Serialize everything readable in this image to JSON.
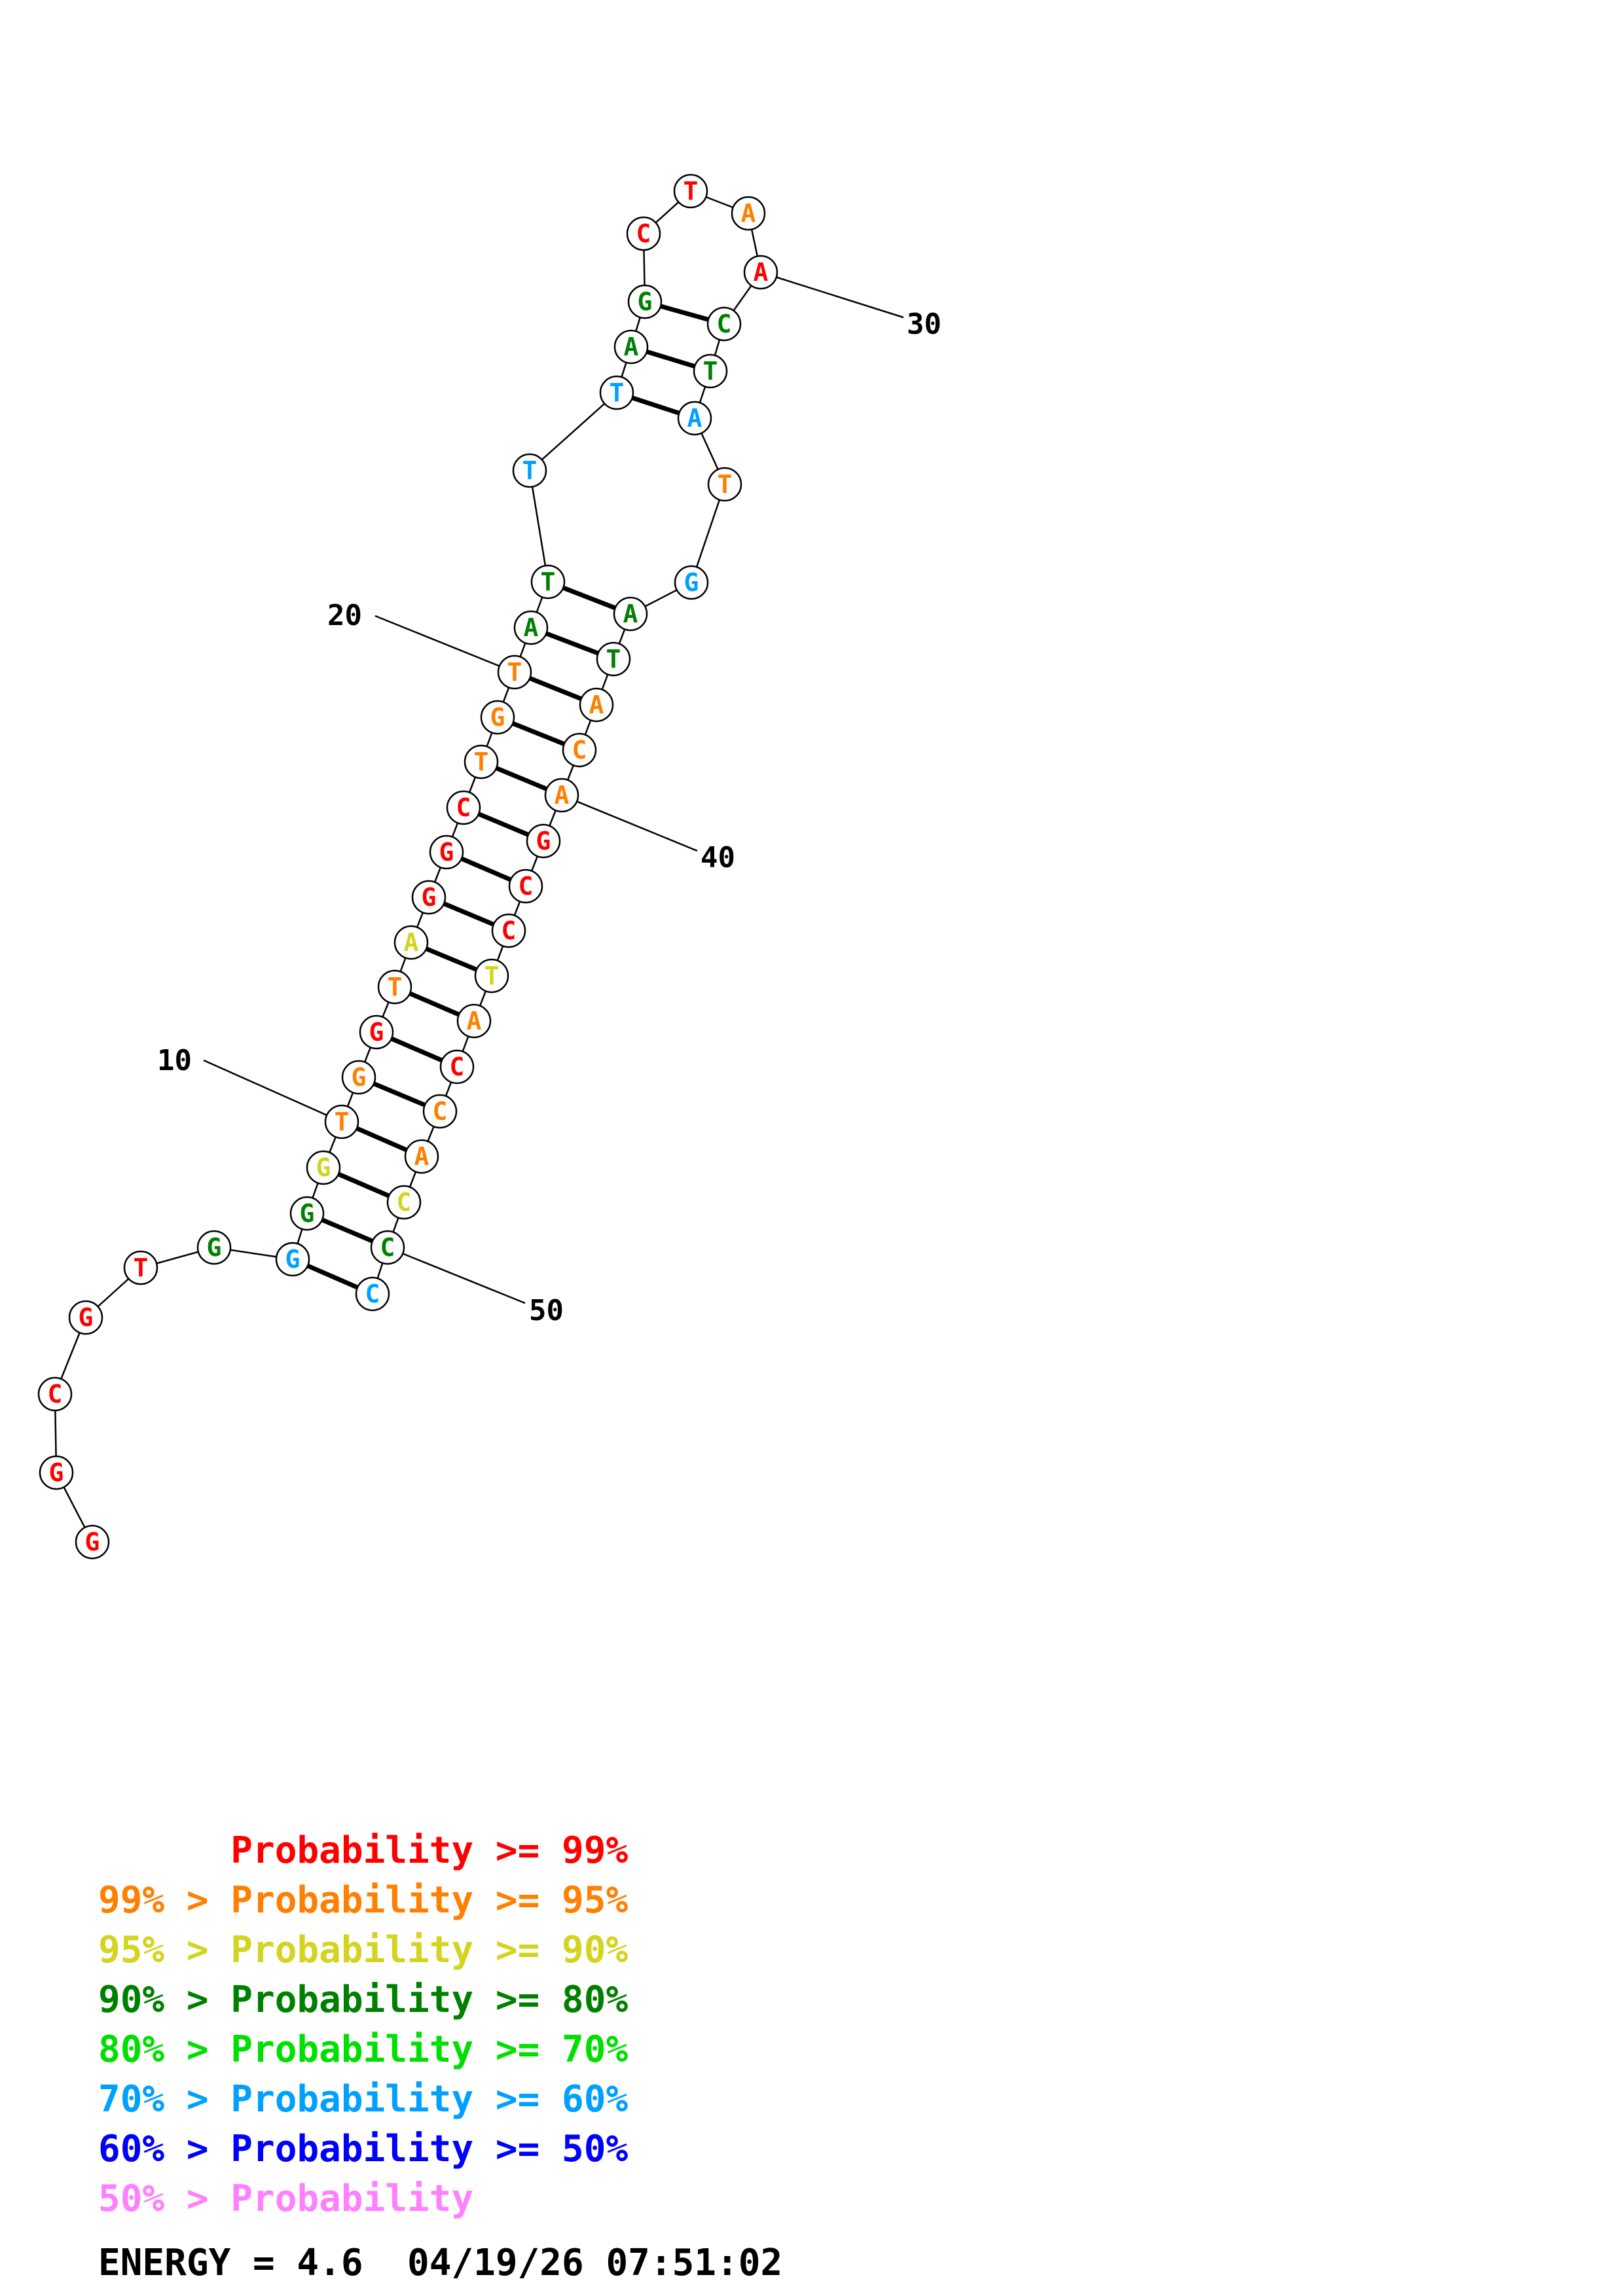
{
  "colors": {
    "p99": "#ff0000",
    "p95": "#ff8000",
    "p90": "#d4d420",
    "p80": "#008000",
    "p70": "#00e000",
    "p60": "#00a0ff",
    "p50": "#0000ff",
    "plt50": "#ff80ff"
  },
  "sequence": [
    {
      "n": 1,
      "base": "G",
      "prob": "p99"
    },
    {
      "n": 2,
      "base": "G",
      "prob": "p99"
    },
    {
      "n": 3,
      "base": "C",
      "prob": "p99"
    },
    {
      "n": 4,
      "base": "G",
      "prob": "p99"
    },
    {
      "n": 5,
      "base": "T",
      "prob": "p99"
    },
    {
      "n": 6,
      "base": "G",
      "prob": "p80"
    },
    {
      "n": 7,
      "base": "G",
      "prob": "p60"
    },
    {
      "n": 8,
      "base": "G",
      "prob": "p80"
    },
    {
      "n": 9,
      "base": "G",
      "prob": "p90"
    },
    {
      "n": 10,
      "base": "T",
      "prob": "p95"
    },
    {
      "n": 11,
      "base": "G",
      "prob": "p95"
    },
    {
      "n": 12,
      "base": "G",
      "prob": "p99"
    },
    {
      "n": 13,
      "base": "T",
      "prob": "p95"
    },
    {
      "n": 14,
      "base": "A",
      "prob": "p90"
    },
    {
      "n": 15,
      "base": "G",
      "prob": "p99"
    },
    {
      "n": 16,
      "base": "G",
      "prob": "p99"
    },
    {
      "n": 17,
      "base": "C",
      "prob": "p99"
    },
    {
      "n": 18,
      "base": "T",
      "prob": "p95"
    },
    {
      "n": 19,
      "base": "G",
      "prob": "p95"
    },
    {
      "n": 20,
      "base": "T",
      "prob": "p95"
    },
    {
      "n": 21,
      "base": "A",
      "prob": "p80"
    },
    {
      "n": 22,
      "base": "T",
      "prob": "p80"
    },
    {
      "n": 23,
      "base": "T",
      "prob": "p60"
    },
    {
      "n": 24,
      "base": "T",
      "prob": "p60"
    },
    {
      "n": 25,
      "base": "A",
      "prob": "p80"
    },
    {
      "n": 26,
      "base": "G",
      "prob": "p80"
    },
    {
      "n": 27,
      "base": "C",
      "prob": "p99"
    },
    {
      "n": 28,
      "base": "T",
      "prob": "p99"
    },
    {
      "n": 29,
      "base": "A",
      "prob": "p95"
    },
    {
      "n": 30,
      "base": "A",
      "prob": "p99"
    },
    {
      "n": 31,
      "base": "C",
      "prob": "p80"
    },
    {
      "n": 32,
      "base": "T",
      "prob": "p80"
    },
    {
      "n": 33,
      "base": "A",
      "prob": "p60"
    },
    {
      "n": 34,
      "base": "T",
      "prob": "p95"
    },
    {
      "n": 35,
      "base": "G",
      "prob": "p60"
    },
    {
      "n": 36,
      "base": "A",
      "prob": "p80"
    },
    {
      "n": 37,
      "base": "T",
      "prob": "p80"
    },
    {
      "n": 38,
      "base": "A",
      "prob": "p95"
    },
    {
      "n": 39,
      "base": "C",
      "prob": "p95"
    },
    {
      "n": 40,
      "base": "A",
      "prob": "p95"
    },
    {
      "n": 41,
      "base": "G",
      "prob": "p99"
    },
    {
      "n": 42,
      "base": "C",
      "prob": "p99"
    },
    {
      "n": 43,
      "base": "C",
      "prob": "p99"
    },
    {
      "n": 44,
      "base": "T",
      "prob": "p90"
    },
    {
      "n": 45,
      "base": "A",
      "prob": "p95"
    },
    {
      "n": 46,
      "base": "C",
      "prob": "p99"
    },
    {
      "n": 47,
      "base": "C",
      "prob": "p95"
    },
    {
      "n": 48,
      "base": "A",
      "prob": "p95"
    },
    {
      "n": 49,
      "base": "C",
      "prob": "p90"
    },
    {
      "n": 50,
      "base": "C",
      "prob": "p80"
    },
    {
      "n": 51,
      "base": "C",
      "prob": "p60"
    }
  ],
  "base_pairs": [
    [
      7,
      51
    ],
    [
      8,
      50
    ],
    [
      9,
      49
    ],
    [
      10,
      48
    ],
    [
      11,
      47
    ],
    [
      12,
      46
    ],
    [
      13,
      45
    ],
    [
      14,
      44
    ],
    [
      15,
      43
    ],
    [
      16,
      42
    ],
    [
      17,
      41
    ],
    [
      18,
      40
    ],
    [
      19,
      39
    ],
    [
      20,
      38
    ],
    [
      21,
      37
    ],
    [
      22,
      36
    ],
    [
      24,
      33
    ],
    [
      25,
      32
    ],
    [
      26,
      31
    ]
  ],
  "position_labels": [
    "10",
    "20",
    "30",
    "40",
    "50"
  ],
  "legend": [
    {
      "prefix": "",
      "text": "Probability >= 99%",
      "prob": "p99"
    },
    {
      "prefix": "99% > ",
      "text": "Probability >= 95%",
      "prob": "p95"
    },
    {
      "prefix": "95% > ",
      "text": "Probability >= 90%",
      "prob": "p90"
    },
    {
      "prefix": "90% > ",
      "text": "Probability >= 80%",
      "prob": "p80"
    },
    {
      "prefix": "80% > ",
      "text": "Probability >= 70%",
      "prob": "p70"
    },
    {
      "prefix": "70% > ",
      "text": "Probability >= 60%",
      "prob": "p60"
    },
    {
      "prefix": "60% > ",
      "text": "Probability >= 50%",
      "prob": "p50"
    },
    {
      "prefix": "50% > ",
      "text": "Probability",
      "prob": "plt50"
    }
  ],
  "energy": {
    "label": "ENERGY = 4.6",
    "timestamp": "04/19/26 07:51:02"
  }
}
